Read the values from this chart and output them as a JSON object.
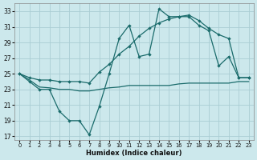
{
  "xlabel": "Humidex (Indice chaleur)",
  "ylabel": "",
  "xlim": [
    -0.5,
    23.5
  ],
  "ylim": [
    16.5,
    34
  ],
  "yticks": [
    17,
    19,
    21,
    23,
    25,
    27,
    29,
    31,
    33
  ],
  "xticks": [
    0,
    1,
    2,
    3,
    4,
    5,
    6,
    7,
    8,
    9,
    10,
    11,
    12,
    13,
    14,
    15,
    16,
    17,
    18,
    19,
    20,
    21,
    22,
    23
  ],
  "background_color": "#cce8ec",
  "grid_color": "#aacdd4",
  "line_color": "#1a6b6b",
  "series1_x": [
    0,
    1,
    2,
    3,
    4,
    5,
    6,
    7,
    8,
    9,
    10,
    11,
    12,
    13,
    14,
    15,
    16,
    17,
    18,
    19,
    20,
    21,
    22,
    23
  ],
  "series1_y": [
    25.0,
    24.0,
    23.0,
    23.0,
    20.2,
    19.0,
    19.0,
    17.2,
    20.8,
    25.0,
    29.5,
    31.2,
    27.2,
    27.5,
    33.3,
    32.3,
    32.3,
    32.3,
    31.2,
    30.5,
    26.0,
    27.2,
    24.5,
    24.5
  ],
  "series2_x": [
    0,
    1,
    2,
    3,
    4,
    5,
    6,
    7,
    8,
    9,
    10,
    11,
    12,
    13,
    14,
    15,
    16,
    17,
    18,
    19,
    20,
    21,
    22,
    23
  ],
  "series2_y": [
    25.0,
    24.5,
    24.2,
    24.2,
    24.0,
    24.0,
    24.0,
    23.8,
    25.2,
    26.2,
    27.5,
    28.5,
    29.8,
    30.8,
    31.5,
    32.0,
    32.3,
    32.5,
    31.8,
    30.8,
    30.0,
    29.5,
    24.5,
    24.5
  ],
  "series3_x": [
    0,
    1,
    2,
    3,
    4,
    5,
    6,
    7,
    8,
    9,
    10,
    11,
    12,
    13,
    14,
    15,
    16,
    17,
    18,
    19,
    20,
    21,
    22,
    23
  ],
  "series3_y": [
    25.0,
    24.2,
    23.3,
    23.2,
    23.0,
    23.0,
    22.8,
    22.8,
    23.0,
    23.2,
    23.3,
    23.5,
    23.5,
    23.5,
    23.5,
    23.5,
    23.7,
    23.8,
    23.8,
    23.8,
    23.8,
    23.8,
    24.0,
    24.0
  ]
}
